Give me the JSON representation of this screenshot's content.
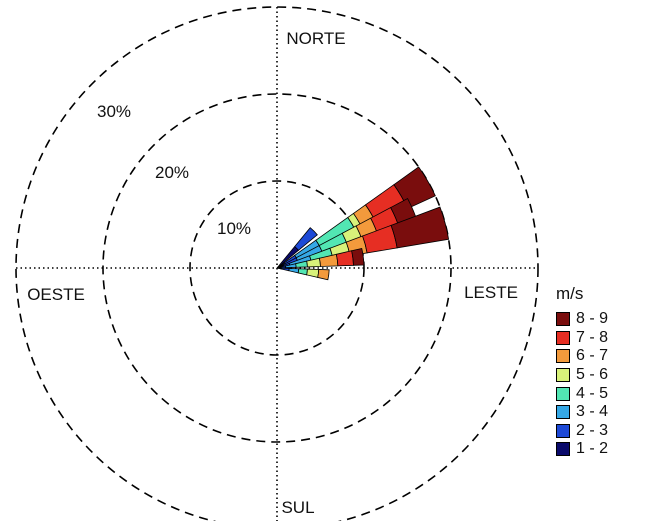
{
  "chart_data": {
    "type": "windrose",
    "units": "m/s",
    "directions": {
      "north": "NORTE",
      "south": "SUL",
      "east": "LESTE",
      "west": "OESTE"
    },
    "radial_ticks": [
      "10%",
      "20%",
      "30%"
    ],
    "radial_max": 30,
    "legend": {
      "title": "m/s",
      "position": "bottom-right",
      "bins": [
        {
          "label": "8 - 9",
          "color": "#7a0d0d"
        },
        {
          "label": "7 - 8",
          "color": "#e62e23"
        },
        {
          "label": "6 - 7",
          "color": "#f39a3c"
        },
        {
          "label": "5 - 6",
          "color": "#d8f27a"
        },
        {
          "label": "4 - 5",
          "color": "#52e6b3"
        },
        {
          "label": "3 - 4",
          "color": "#35a8e6"
        },
        {
          "label": "2 - 3",
          "color": "#1d49d6"
        },
        {
          "label": "1 - 2",
          "color": "#0a0a6b"
        }
      ]
    },
    "sectors": [
      {
        "direction_deg": 45,
        "cumulative_percent": [
          3.2,
          6.0
        ]
      },
      {
        "direction_deg": 60,
        "cumulative_percent": [
          1.0,
          2.5,
          5.5,
          10.0,
          10.8,
          12.5,
          16.5,
          20.0
        ]
      },
      {
        "direction_deg": 67.5,
        "cumulative_percent": [
          0.8,
          2.5,
          5.5,
          8.5,
          10.3,
          12.2,
          14.8,
          17.0
        ]
      },
      {
        "direction_deg": 75,
        "cumulative_percent": [
          0.5,
          1.5,
          4.0,
          6.5,
          8.5,
          10.5,
          14.0,
          20.0
        ]
      },
      {
        "direction_deg": 82.5,
        "cumulative_percent": [
          0.3,
          1.0,
          2.2,
          3.5,
          5.0,
          7.0,
          8.8,
          10.0
        ]
      },
      {
        "direction_deg": 97.5,
        "cumulative_percent": [
          0.5,
          1.4,
          2.5,
          3.5,
          4.8,
          6.0
        ]
      }
    ]
  }
}
